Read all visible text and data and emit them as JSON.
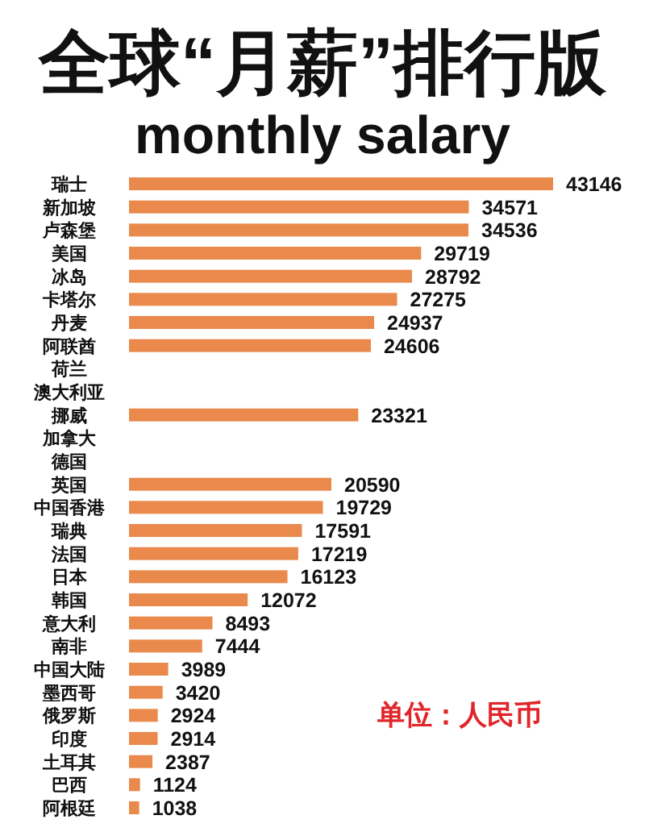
{
  "chart_data": {
    "type": "bar",
    "orientation": "horizontal",
    "title": "全球“月薪”排行版",
    "subtitle": "monthly salary",
    "categories": [
      "瑞士",
      "新加坡",
      "卢森堡",
      "美国",
      "冰岛",
      "卡塔尔",
      "丹麦",
      "阿联酋",
      "荷兰",
      "澳大利亚",
      "挪威",
      "加拿大",
      "德国",
      "英国",
      "中国香港",
      "瑞典",
      "法国",
      "日本",
      "韩国",
      "意大利",
      "南非",
      "中国大陆",
      "墨西哥",
      "俄罗斯",
      "印度",
      "土耳其",
      "巴西",
      "阿根廷"
    ],
    "values": [
      43146,
      34571,
      34536,
      29719,
      28792,
      27275,
      24937,
      24606,
      null,
      null,
      23321,
      null,
      null,
      20590,
      19729,
      17591,
      17219,
      16123,
      12072,
      8493,
      7444,
      3989,
      3420,
      2924,
      2914,
      2387,
      1124,
      1038
    ],
    "color": "#e98a4c",
    "data_labels": true,
    "annotations": [
      "单位：人民币"
    ]
  }
}
